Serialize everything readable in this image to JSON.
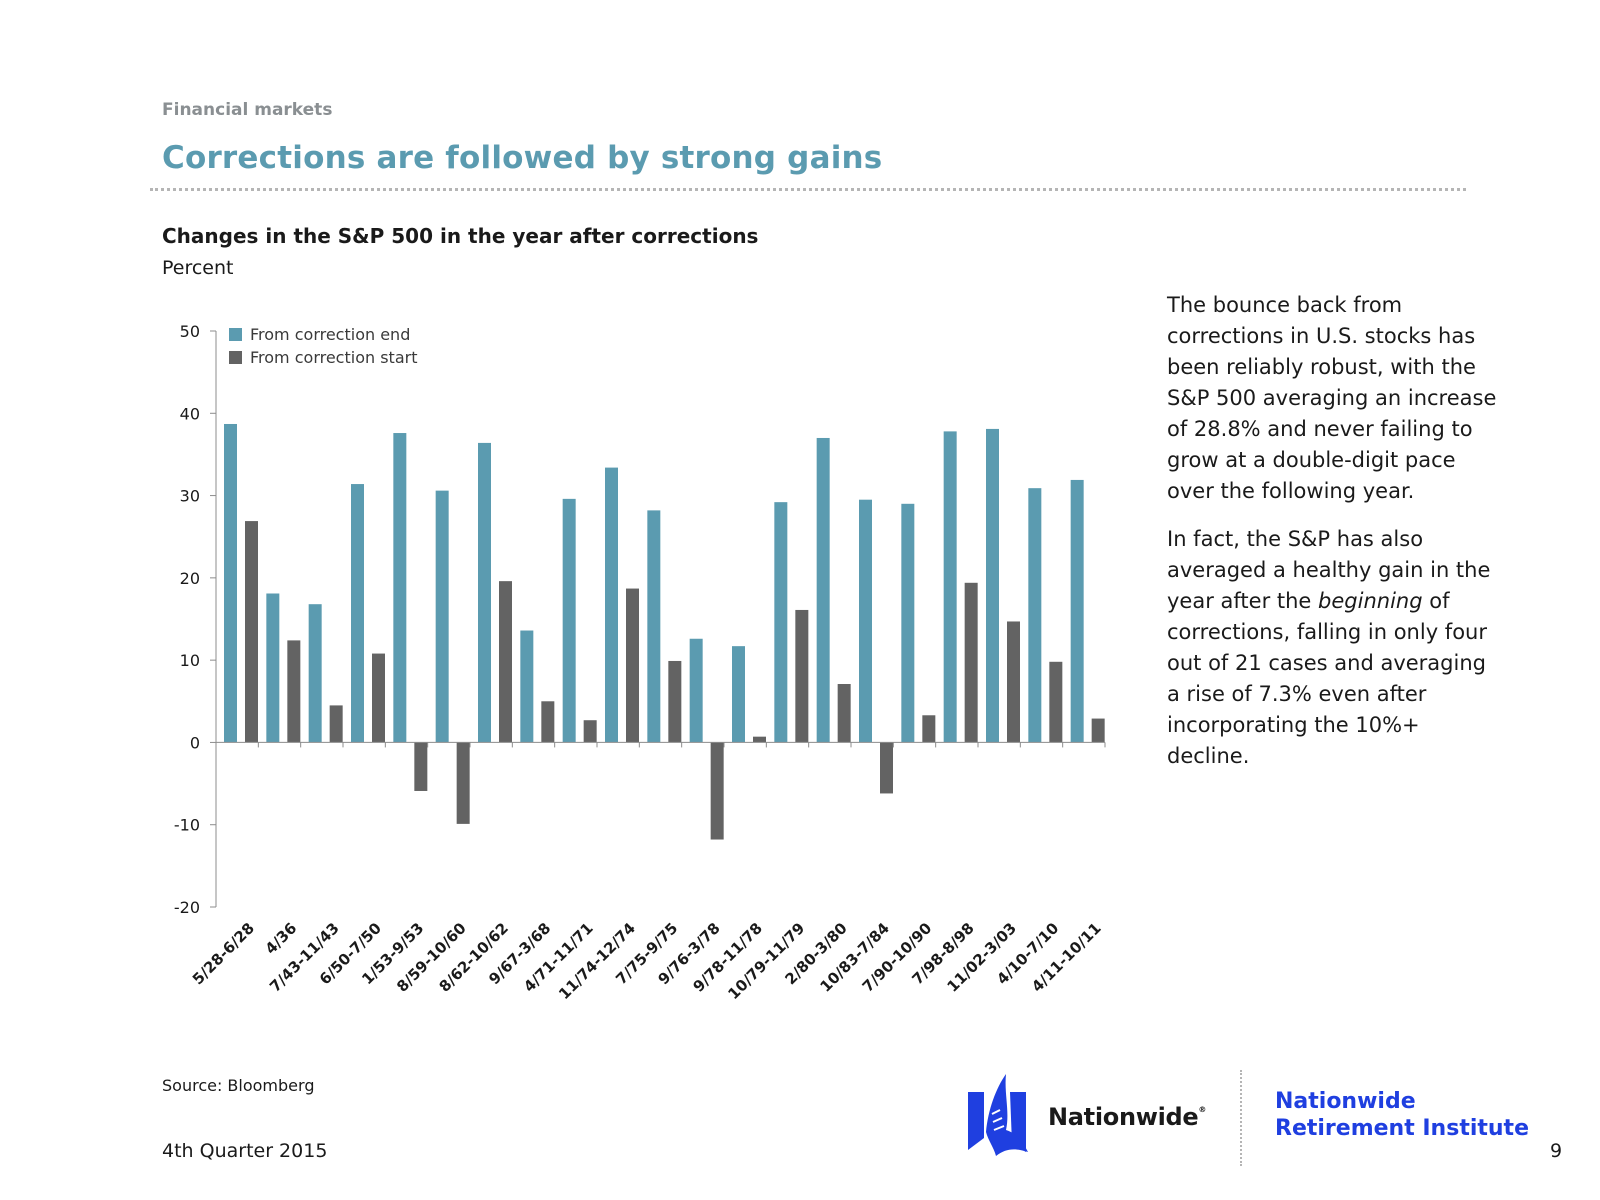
{
  "header": {
    "section_label": "Financial markets",
    "title": "Corrections are followed by strong gains"
  },
  "side_text": {
    "paragraph1": "The bounce back from corrections in U.S. stocks has been reliably robust, with the S&P 500 averaging an increase of 28.8% and never failing to grow at a double-digit pace over the following year.",
    "paragraph2_before": "In fact, the S&P has also averaged a healthy gain in the year after the ",
    "paragraph2_emphasis": "beginning",
    "paragraph2_after": " of corrections, falling in only four out of 21 cases and averaging a rise of 7.3% even after incorporating the 10%+ decline."
  },
  "footer": {
    "source": "Source: Bloomberg",
    "quarter": "4th Quarter 2015",
    "page_number": "9",
    "logo_text": "Nationwide",
    "logo_mark": "®",
    "institute_line1": "Nationwide",
    "institute_line2": "Retirement Institute"
  },
  "colors": {
    "series_end": "#5b9bb0",
    "series_start": "#636363",
    "title": "#5b9bb0",
    "brand_blue": "#1f3fe0"
  },
  "chart_data": {
    "type": "bar",
    "title": "Changes in the S&P 500 in the year after corrections",
    "ylabel": "Percent",
    "xlabel": "",
    "ylim": [
      -20,
      50
    ],
    "yticks": [
      50,
      40,
      30,
      20,
      10,
      0,
      -10,
      -20
    ],
    "grid": false,
    "legend_position": "top-left",
    "categories": [
      "5/28-6/28",
      "4/36",
      "7/43-11/43",
      "6/50-7/50",
      "1/53-9/53",
      "8/59-10/60",
      "8/62-10/62",
      "9/67-3/68",
      "4/71-11/71",
      "11/74-12/74",
      "7/75-9/75",
      "9/76-3/78",
      "9/78-11/78",
      "10/79-11/79",
      "2/80-3/80",
      "10/83-7/84",
      "7/90-10/90",
      "7/98-8/98",
      "11/02-3/03",
      "4/10-7/10",
      "4/11-10/11"
    ],
    "series": [
      {
        "name": "From correction end",
        "color": "#5b9bb0",
        "values": [
          38.7,
          18.1,
          16.8,
          31.4,
          37.6,
          30.6,
          36.4,
          13.6,
          29.6,
          33.4,
          28.2,
          12.6,
          11.7,
          29.2,
          37.0,
          29.5,
          29.0,
          37.8,
          38.1,
          30.9,
          31.9
        ]
      },
      {
        "name": "From correction start",
        "color": "#636363",
        "values": [
          26.9,
          12.4,
          4.5,
          10.8,
          -5.9,
          -9.9,
          19.6,
          5.0,
          2.7,
          18.7,
          9.9,
          -11.8,
          0.7,
          16.1,
          7.1,
          -6.2,
          3.3,
          19.4,
          14.7,
          9.8,
          2.9
        ]
      }
    ]
  }
}
